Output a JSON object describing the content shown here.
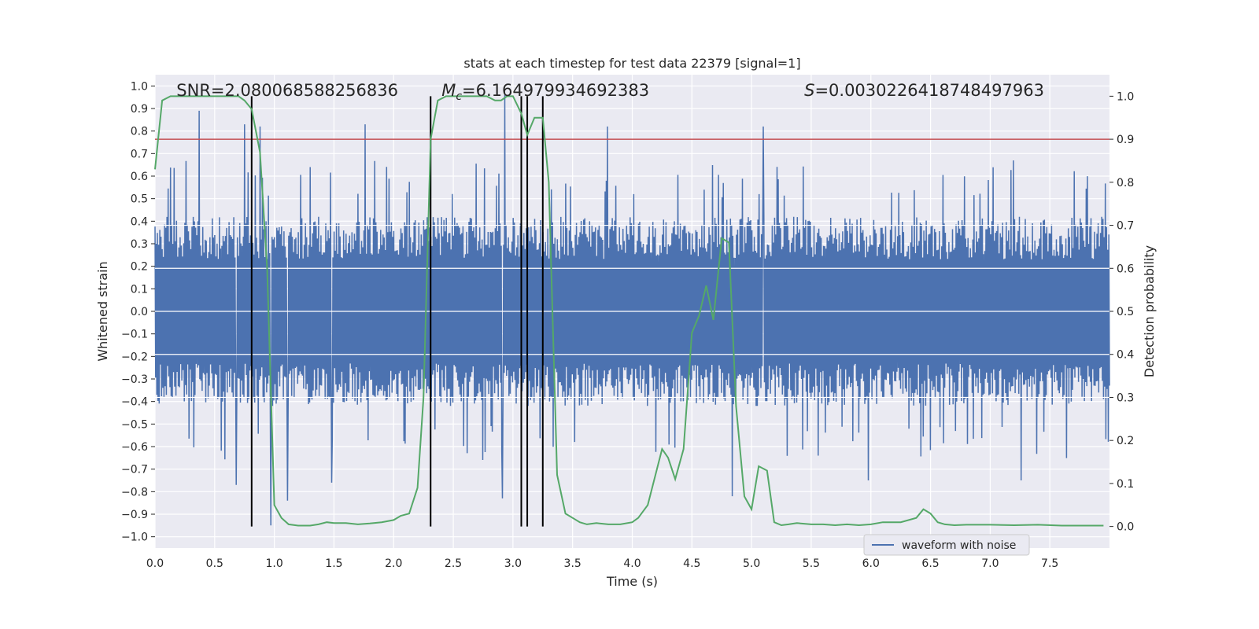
{
  "chart_data": {
    "type": "line",
    "title": "stats at each timestep for test data 22379 [signal=1]",
    "xlabel": "Time (s)",
    "ylabel": "Whitened strain",
    "ylabel_right": "Detection probability",
    "xlim": [
      0.0,
      8.0
    ],
    "ylim": [
      -1.05,
      1.05
    ],
    "ylim_right": [
      -0.05,
      1.05
    ],
    "x_ticks": [
      0.0,
      0.5,
      1.0,
      1.5,
      2.0,
      2.5,
      3.0,
      3.5,
      4.0,
      4.5,
      5.0,
      5.5,
      6.0,
      6.5,
      7.0,
      7.5
    ],
    "x_tick_labels": [
      "0.0",
      "0.5",
      "1.0",
      "1.5",
      "2.0",
      "2.5",
      "3.0",
      "3.5",
      "4.0",
      "4.5",
      "5.0",
      "5.5",
      "6.0",
      "6.5",
      "7.0",
      "7.5"
    ],
    "y_ticks": [
      1.0,
      0.9,
      0.8,
      0.7,
      0.6,
      0.5,
      0.4,
      0.3,
      0.2,
      0.1,
      0.0,
      -0.1,
      -0.2,
      -0.3,
      -0.4,
      -0.5,
      -0.6,
      -0.7,
      -0.8,
      -0.9,
      -1.0
    ],
    "y_tick_labels": [
      "1.0",
      "0.9",
      "0.8",
      "0.7",
      "0.6",
      "0.5",
      "0.4",
      "0.3",
      "0.2",
      "0.1",
      "0.0",
      "−0.1",
      "−0.2",
      "−0.3",
      "−0.4",
      "−0.5",
      "−0.6",
      "−0.7",
      "−0.8",
      "−0.9",
      "−1.0"
    ],
    "y_right_ticks": [
      1.0,
      0.9,
      0.8,
      0.7,
      0.6,
      0.5,
      0.4,
      0.3,
      0.2,
      0.1,
      0.0
    ],
    "y_right_tick_labels": [
      "1.0",
      "0.9",
      "0.8",
      "0.7",
      "0.6",
      "0.5",
      "0.4",
      "0.3",
      "0.2",
      "0.1",
      "0.0"
    ],
    "grid": true,
    "annotations": [
      {
        "id": "snr",
        "text": "SNR=2.080068588256836",
        "x": 0.18
      },
      {
        "id": "mc",
        "prefix": "M",
        "sub": "c",
        "text": "=6.164979934692383",
        "x": 2.6
      },
      {
        "id": "s",
        "prefix": "S",
        "text": "=0.0030226418748497963",
        "x": 5.6
      }
    ],
    "legend": {
      "position": "lower-right",
      "entries": [
        {
          "label": "waveform with noise",
          "color": "#4c72b0"
        }
      ]
    },
    "threshold_line": {
      "y_right": 0.9,
      "color": "#c44e52"
    },
    "vertical_markers": [
      0.81,
      2.31,
      3.07,
      3.12,
      3.25
    ],
    "waveform": {
      "name": "waveform with noise",
      "color": "#4c72b0",
      "n_samples": 1600,
      "typical_envelope": 0.42,
      "peaks": [
        {
          "t": 0.37,
          "v": 0.89
        },
        {
          "t": 0.75,
          "v": 0.83
        },
        {
          "t": 0.88,
          "v": 0.82
        },
        {
          "t": 1.76,
          "v": 0.83
        },
        {
          "t": 2.93,
          "v": 0.96
        },
        {
          "t": 3.79,
          "v": 0.82
        },
        {
          "t": 5.1,
          "v": 0.82
        },
        {
          "t": 0.97,
          "v": -0.95
        },
        {
          "t": 1.11,
          "v": -0.84
        },
        {
          "t": 0.68,
          "v": -0.77
        },
        {
          "t": 1.48,
          "v": -0.76
        },
        {
          "t": 2.91,
          "v": -0.83
        },
        {
          "t": 4.84,
          "v": -0.82
        },
        {
          "t": 5.98,
          "v": -0.75
        },
        {
          "t": 7.26,
          "v": -0.75
        }
      ]
    },
    "series": [
      {
        "name": "detection probability",
        "color": "#55a868",
        "axis": "right",
        "x": [
          0.0,
          0.06,
          0.13,
          0.2,
          0.3,
          0.4,
          0.5,
          0.6,
          0.7,
          0.75,
          0.81,
          0.88,
          0.94,
          1.0,
          1.06,
          1.12,
          1.2,
          1.3,
          1.37,
          1.44,
          1.5,
          1.6,
          1.7,
          1.8,
          1.9,
          2.0,
          2.06,
          2.13,
          2.2,
          2.25,
          2.31,
          2.37,
          2.44,
          2.5,
          2.6,
          2.7,
          2.78,
          2.85,
          2.9,
          2.95,
          3.0,
          3.07,
          3.12,
          3.18,
          3.25,
          3.3,
          3.37,
          3.44,
          3.5,
          3.56,
          3.62,
          3.7,
          3.8,
          3.9,
          4.0,
          4.05,
          4.13,
          4.25,
          4.3,
          4.36,
          4.43,
          4.5,
          4.56,
          4.62,
          4.68,
          4.75,
          4.81,
          4.87,
          4.94,
          5.0,
          5.06,
          5.13,
          5.19,
          5.25,
          5.31,
          5.38,
          5.5,
          5.6,
          5.7,
          5.8,
          5.9,
          6.0,
          6.1,
          6.19,
          6.25,
          6.38,
          6.44,
          6.5,
          6.56,
          6.62,
          6.7,
          6.8,
          7.0,
          7.2,
          7.4,
          7.6,
          7.8,
          7.95
        ],
        "values": [
          0.83,
          0.99,
          1.0,
          1.0,
          1.0,
          1.0,
          1.0,
          1.0,
          1.0,
          0.99,
          0.97,
          0.87,
          0.6,
          0.05,
          0.02,
          0.005,
          0.002,
          0.002,
          0.005,
          0.01,
          0.008,
          0.008,
          0.005,
          0.007,
          0.01,
          0.015,
          0.025,
          0.03,
          0.09,
          0.3,
          0.9,
          0.99,
          1.0,
          1.0,
          1.0,
          1.0,
          1.0,
          0.99,
          0.99,
          1.0,
          1.0,
          0.96,
          0.91,
          0.95,
          0.95,
          0.8,
          0.12,
          0.03,
          0.02,
          0.01,
          0.005,
          0.008,
          0.005,
          0.005,
          0.01,
          0.02,
          0.05,
          0.18,
          0.16,
          0.11,
          0.18,
          0.45,
          0.49,
          0.56,
          0.48,
          0.67,
          0.66,
          0.28,
          0.07,
          0.04,
          0.14,
          0.13,
          0.01,
          0.003,
          0.005,
          0.008,
          0.005,
          0.005,
          0.003,
          0.005,
          0.003,
          0.005,
          0.01,
          0.01,
          0.01,
          0.02,
          0.04,
          0.03,
          0.01,
          0.005,
          0.003,
          0.004,
          0.004,
          0.003,
          0.004,
          0.002,
          0.002,
          0.002
        ]
      }
    ]
  }
}
